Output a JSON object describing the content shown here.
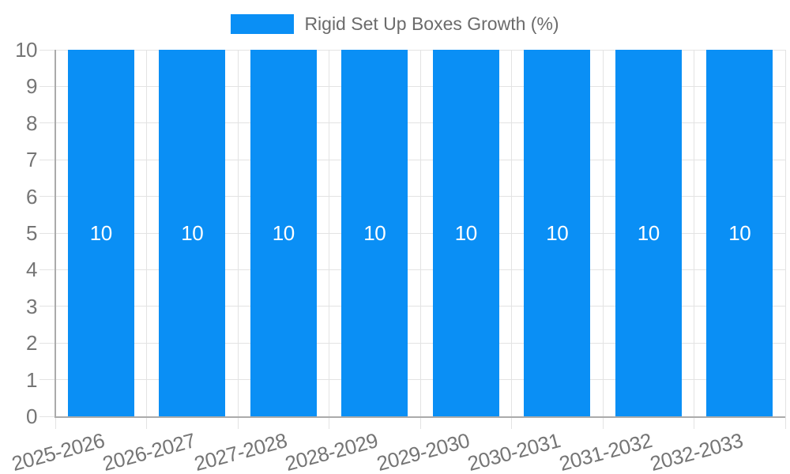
{
  "chart_data": {
    "type": "bar",
    "legend": {
      "label": "Rigid Set Up Boxes Growth (%)",
      "position": "top"
    },
    "categories": [
      "2025-2026",
      "2026-2027",
      "2027-2028",
      "2028-2029",
      "2029-2030",
      "2030-2031",
      "2031-2032",
      "2032-2033"
    ],
    "values": [
      10,
      10,
      10,
      10,
      10,
      10,
      10,
      10
    ],
    "value_labels": [
      "10",
      "10",
      "10",
      "10",
      "10",
      "10",
      "10",
      "10"
    ],
    "ylim": [
      0,
      10
    ],
    "yticks": [
      0,
      1,
      2,
      3,
      4,
      5,
      6,
      7,
      8,
      9,
      10
    ],
    "grid": true,
    "x_label_rotation_deg": -15,
    "colors": {
      "bar": "#0A8FF5",
      "grid": "#E3E3E3",
      "axis": "#ABABAB",
      "tick_text": "#757575",
      "legend_text": "#6B6B6B",
      "value_text": "#FFFFFF",
      "background": "#FFFFFF"
    }
  }
}
